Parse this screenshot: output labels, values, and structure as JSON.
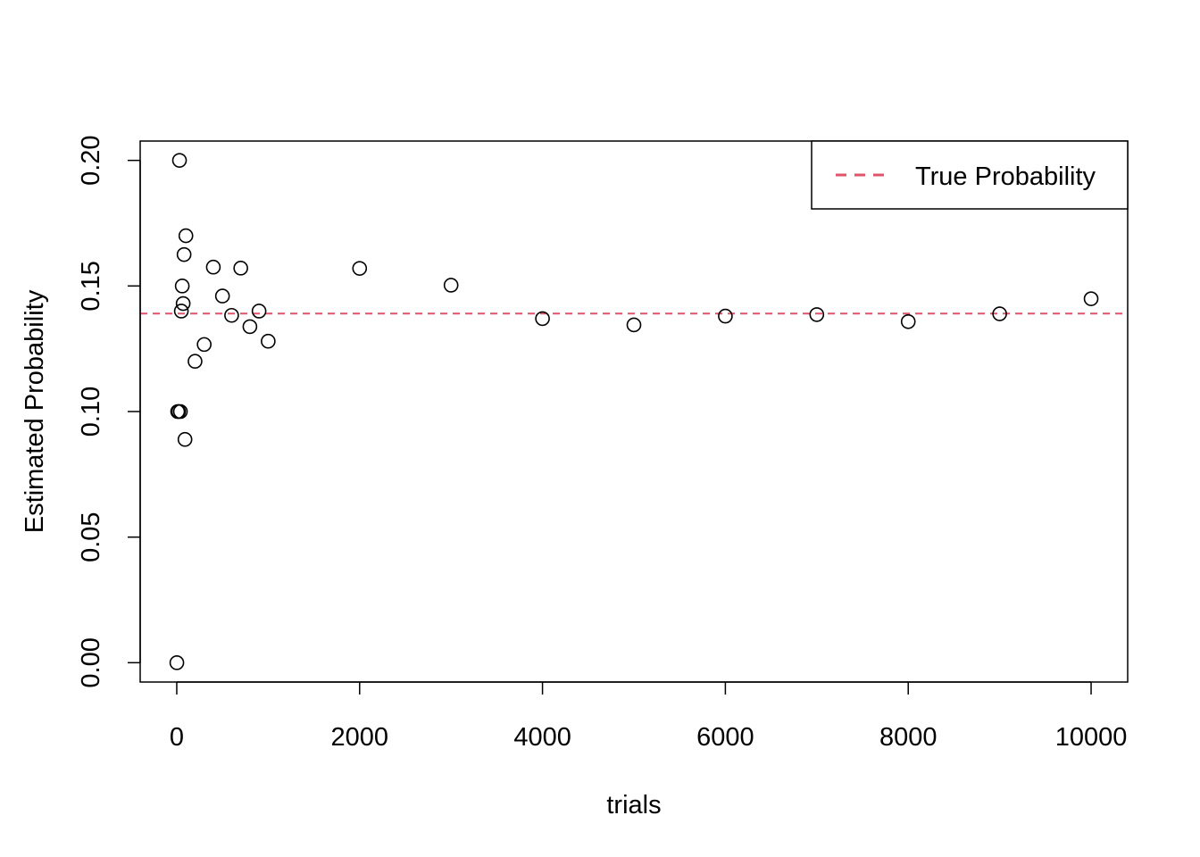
{
  "chart_data": {
    "type": "scatter",
    "title": "",
    "xlabel": "trials",
    "ylabel": "Estimated Probability",
    "xlim": [
      -400,
      10400
    ],
    "ylim": [
      -0.0077,
      0.2077
    ],
    "xticks": [
      0,
      2000,
      4000,
      6000,
      8000,
      10000
    ],
    "xtick_labels": [
      "0",
      "2000",
      "4000",
      "6000",
      "8000",
      "10000"
    ],
    "yticks": [
      0.0,
      0.05,
      0.1,
      0.15,
      0.2
    ],
    "ytick_labels": [
      "0.00",
      "0.05",
      "0.10",
      "0.15",
      "0.20"
    ],
    "grid": false,
    "legend": {
      "placement": "top-right",
      "entries": [
        {
          "label": "True Probability",
          "style": "dashed",
          "color": "#DF536B"
        }
      ]
    },
    "reference_line": {
      "y": 0.139,
      "color": "#DF536B",
      "style": "dashed"
    },
    "series": [
      {
        "marker": "open-circle",
        "color": "#000000",
        "points": [
          {
            "x": 1,
            "y": 0.0
          },
          {
            "x": 10,
            "y": 0.1
          },
          {
            "x": 20,
            "y": 0.1
          },
          {
            "x": 30,
            "y": 0.2
          },
          {
            "x": 40,
            "y": 0.1
          },
          {
            "x": 50,
            "y": 0.14
          },
          {
            "x": 60,
            "y": 0.15
          },
          {
            "x": 70,
            "y": 0.143
          },
          {
            "x": 80,
            "y": 0.1625
          },
          {
            "x": 90,
            "y": 0.0889
          },
          {
            "x": 100,
            "y": 0.17
          },
          {
            "x": 200,
            "y": 0.12
          },
          {
            "x": 300,
            "y": 0.1267
          },
          {
            "x": 400,
            "y": 0.1575
          },
          {
            "x": 500,
            "y": 0.146
          },
          {
            "x": 600,
            "y": 0.1383
          },
          {
            "x": 700,
            "y": 0.1571
          },
          {
            "x": 800,
            "y": 0.1338
          },
          {
            "x": 900,
            "y": 0.14
          },
          {
            "x": 1000,
            "y": 0.128
          },
          {
            "x": 2000,
            "y": 0.157
          },
          {
            "x": 3000,
            "y": 0.1503
          },
          {
            "x": 4000,
            "y": 0.137
          },
          {
            "x": 5000,
            "y": 0.1345
          },
          {
            "x": 6000,
            "y": 0.138
          },
          {
            "x": 7000,
            "y": 0.1386
          },
          {
            "x": 8000,
            "y": 0.1358
          },
          {
            "x": 9000,
            "y": 0.1389
          },
          {
            "x": 10000,
            "y": 0.1449
          }
        ]
      }
    ]
  }
}
